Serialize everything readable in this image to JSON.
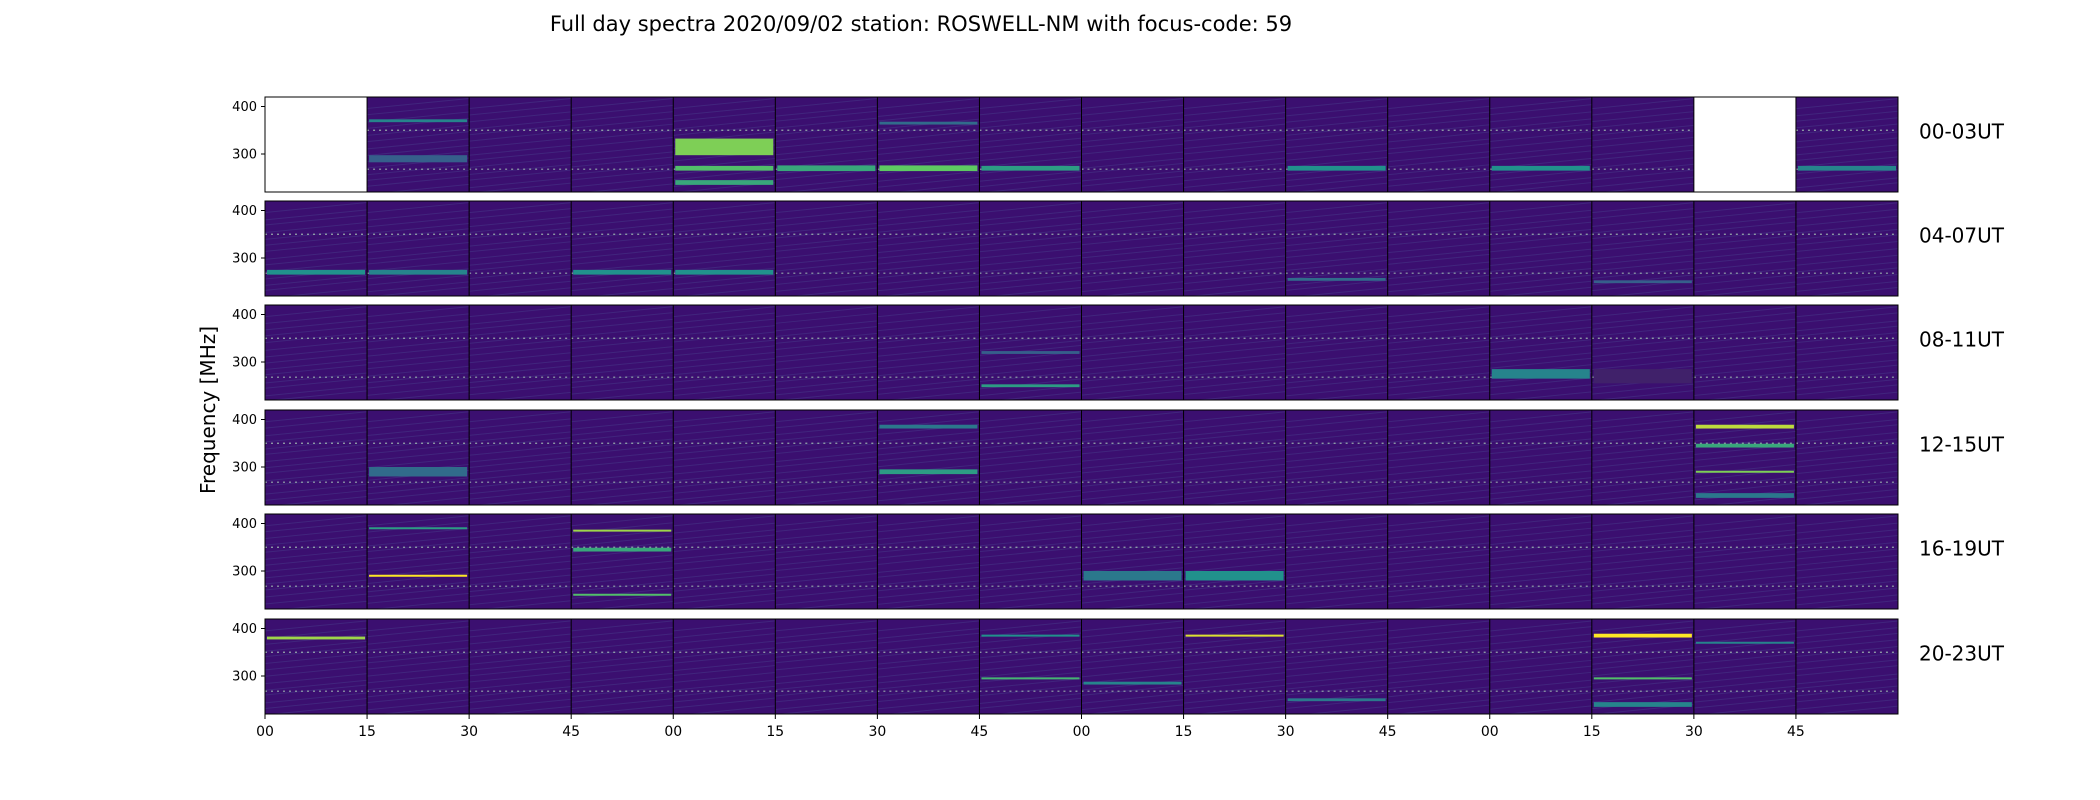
{
  "chart_data": {
    "type": "heatmap",
    "title": "Full day spectra 2020/09/02 station: ROSWELL-NM with focus-code: 59",
    "ylabel": "Frequency [MHz]",
    "ytick_labels": [
      "400",
      "300"
    ],
    "y_range_mhz": [
      220,
      420
    ],
    "xtick_labels": [
      "00",
      "15",
      "30",
      "45",
      "00",
      "15",
      "30",
      "45",
      "00",
      "15",
      "30",
      "45",
      "00",
      "15",
      "30",
      "45"
    ],
    "colormap": "viridis",
    "background_color": "#3b0f70",
    "panels_per_row": 16,
    "rows": [
      {
        "label": "00-03UT",
        "empty_panels": [
          0,
          14
        ],
        "features": [
          {
            "panel": 1,
            "f_mhz": 370,
            "w_mhz": 6,
            "intensity": 0.45
          },
          {
            "panel": 1,
            "f_mhz": 290,
            "w_mhz": 15,
            "intensity": 0.3
          },
          {
            "panel": 4,
            "f_mhz": 315,
            "w_mhz": 35,
            "intensity": 0.8
          },
          {
            "panel": 4,
            "f_mhz": 240,
            "w_mhz": 10,
            "intensity": 0.6
          },
          {
            "panel": 4,
            "f_mhz": 270,
            "w_mhz": 10,
            "intensity": 0.7
          },
          {
            "panel": 5,
            "f_mhz": 270,
            "w_mhz": 12,
            "intensity": 0.6
          },
          {
            "panel": 6,
            "f_mhz": 270,
            "w_mhz": 12,
            "intensity": 0.75
          },
          {
            "panel": 6,
            "f_mhz": 365,
            "w_mhz": 6,
            "intensity": 0.35
          },
          {
            "panel": 7,
            "f_mhz": 270,
            "w_mhz": 10,
            "intensity": 0.55
          },
          {
            "panel": 10,
            "f_mhz": 270,
            "w_mhz": 10,
            "intensity": 0.5
          },
          {
            "panel": 12,
            "f_mhz": 270,
            "w_mhz": 10,
            "intensity": 0.5
          },
          {
            "panel": 15,
            "f_mhz": 270,
            "w_mhz": 10,
            "intensity": 0.45
          }
        ]
      },
      {
        "label": "04-07UT",
        "empty_panels": [],
        "features": [
          {
            "panel": 0,
            "f_mhz": 270,
            "w_mhz": 10,
            "intensity": 0.5
          },
          {
            "panel": 1,
            "f_mhz": 270,
            "w_mhz": 10,
            "intensity": 0.45
          },
          {
            "panel": 3,
            "f_mhz": 270,
            "w_mhz": 10,
            "intensity": 0.5
          },
          {
            "panel": 4,
            "f_mhz": 270,
            "w_mhz": 10,
            "intensity": 0.5
          },
          {
            "panel": 10,
            "f_mhz": 255,
            "w_mhz": 6,
            "intensity": 0.35
          },
          {
            "panel": 13,
            "f_mhz": 250,
            "w_mhz": 6,
            "intensity": 0.3
          }
        ]
      },
      {
        "label": "08-11UT",
        "empty_panels": [],
        "features": [
          {
            "panel": 7,
            "f_mhz": 250,
            "w_mhz": 6,
            "intensity": 0.55
          },
          {
            "panel": 7,
            "f_mhz": 320,
            "w_mhz": 6,
            "intensity": 0.3
          },
          {
            "panel": 12,
            "f_mhz": 275,
            "w_mhz": 20,
            "intensity": 0.45
          },
          {
            "panel": 13,
            "f_mhz": 270,
            "w_mhz": 30,
            "intensity": 0.1
          }
        ]
      },
      {
        "label": "12-15UT",
        "empty_panels": [],
        "features": [
          {
            "panel": 1,
            "f_mhz": 290,
            "w_mhz": 20,
            "intensity": 0.35
          },
          {
            "panel": 6,
            "f_mhz": 290,
            "w_mhz": 10,
            "intensity": 0.55
          },
          {
            "panel": 6,
            "f_mhz": 385,
            "w_mhz": 8,
            "intensity": 0.4
          },
          {
            "panel": 14,
            "f_mhz": 385,
            "w_mhz": 8,
            "intensity": 0.9
          },
          {
            "panel": 14,
            "f_mhz": 345,
            "w_mhz": 8,
            "intensity": 0.6
          },
          {
            "panel": 14,
            "f_mhz": 290,
            "w_mhz": 4,
            "intensity": 0.8
          },
          {
            "panel": 14,
            "f_mhz": 240,
            "w_mhz": 10,
            "intensity": 0.4
          }
        ]
      },
      {
        "label": "16-19UT",
        "empty_panels": [],
        "features": [
          {
            "panel": 1,
            "f_mhz": 290,
            "w_mhz": 3,
            "intensity": 1.0
          },
          {
            "panel": 1,
            "f_mhz": 390,
            "w_mhz": 4,
            "intensity": 0.55
          },
          {
            "panel": 3,
            "f_mhz": 385,
            "w_mhz": 4,
            "intensity": 0.85
          },
          {
            "panel": 3,
            "f_mhz": 345,
            "w_mhz": 8,
            "intensity": 0.6
          },
          {
            "panel": 3,
            "f_mhz": 250,
            "w_mhz": 4,
            "intensity": 0.7
          },
          {
            "panel": 8,
            "f_mhz": 290,
            "w_mhz": 20,
            "intensity": 0.4
          },
          {
            "panel": 9,
            "f_mhz": 290,
            "w_mhz": 20,
            "intensity": 0.5
          }
        ]
      },
      {
        "label": "20-23UT",
        "empty_panels": [],
        "features": [
          {
            "panel": 0,
            "f_mhz": 380,
            "w_mhz": 6,
            "intensity": 0.85
          },
          {
            "panel": 7,
            "f_mhz": 385,
            "w_mhz": 4,
            "intensity": 0.5
          },
          {
            "panel": 7,
            "f_mhz": 295,
            "w_mhz": 3,
            "intensity": 0.65
          },
          {
            "panel": 8,
            "f_mhz": 285,
            "w_mhz": 6,
            "intensity": 0.45
          },
          {
            "panel": 9,
            "f_mhz": 385,
            "w_mhz": 4,
            "intensity": 0.95
          },
          {
            "panel": 10,
            "f_mhz": 250,
            "w_mhz": 6,
            "intensity": 0.4
          },
          {
            "panel": 13,
            "f_mhz": 385,
            "w_mhz": 8,
            "intensity": 1.0
          },
          {
            "panel": 13,
            "f_mhz": 295,
            "w_mhz": 3,
            "intensity": 0.7
          },
          {
            "panel": 13,
            "f_mhz": 240,
            "w_mhz": 10,
            "intensity": 0.45
          },
          {
            "panel": 14,
            "f_mhz": 370,
            "w_mhz": 4,
            "intensity": 0.45
          }
        ]
      }
    ]
  }
}
